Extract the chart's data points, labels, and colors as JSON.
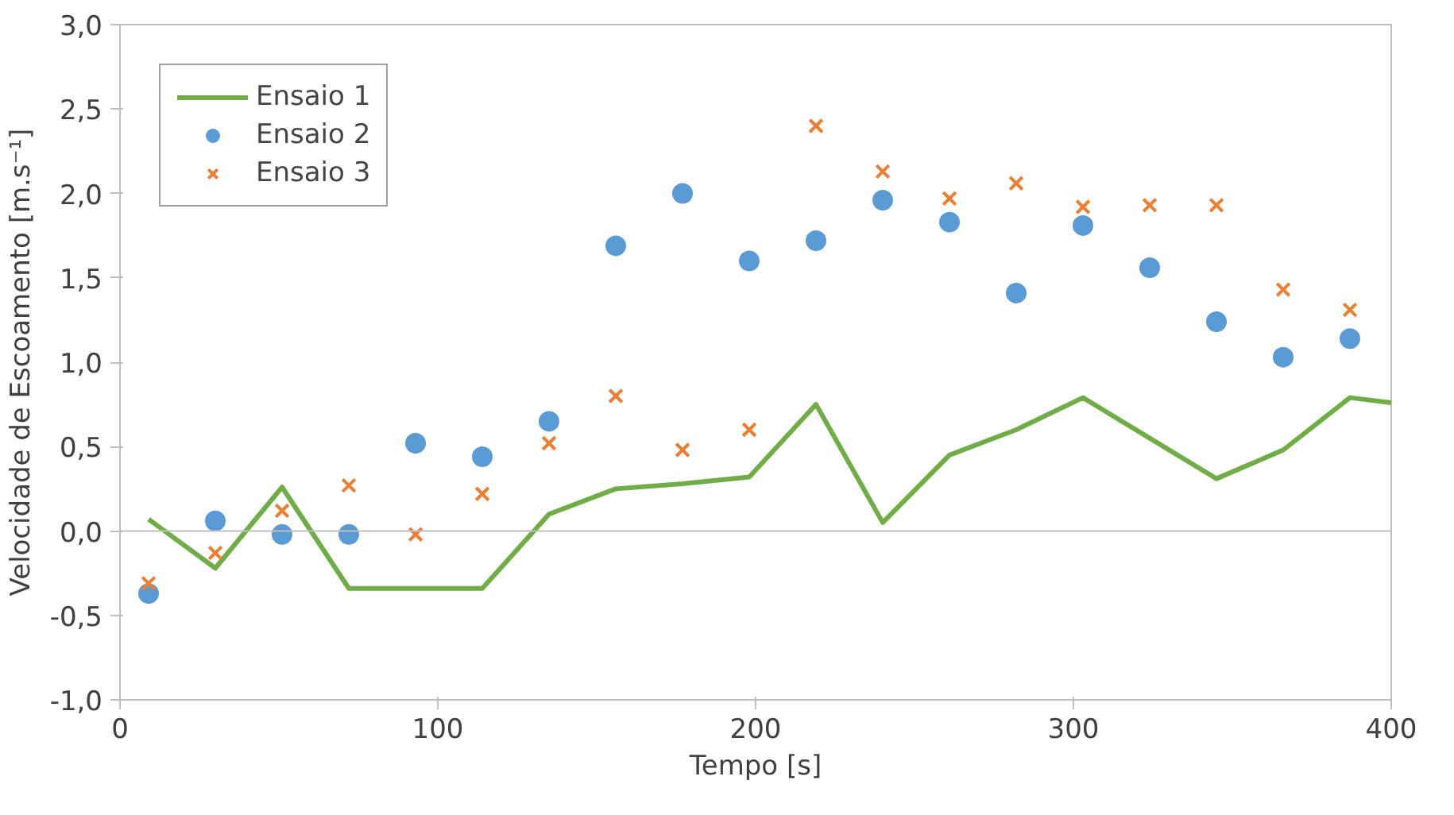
{
  "chart_data": {
    "type": "scatter",
    "xlabel": "Tempo [s]",
    "ylabel": "Velocidade de Escoamento [m.s⁻¹]",
    "xlim": [
      0,
      400
    ],
    "xticks": [
      0,
      100,
      200,
      300,
      400
    ],
    "ylim": [
      -1.0,
      3.0
    ],
    "yticks": [
      {
        "value": -1.0,
        "label": "-1,0"
      },
      {
        "value": -0.5,
        "label": "-0,5"
      },
      {
        "value": 0.0,
        "label": "0,0"
      },
      {
        "value": 0.5,
        "label": "0,5"
      },
      {
        "value": 1.0,
        "label": "1,0"
      },
      {
        "value": 1.5,
        "label": "1,5"
      },
      {
        "value": 2.0,
        "label": "2,0"
      },
      {
        "value": 2.5,
        "label": "2,5"
      },
      {
        "value": 3.0,
        "label": "3,0"
      }
    ],
    "x": [
      9,
      30,
      51,
      72,
      93,
      114,
      135,
      156,
      177,
      198,
      219,
      240,
      261,
      282,
      303,
      324,
      345,
      366,
      387
    ],
    "grid": false,
    "ref_lines": [
      {
        "axis": "y",
        "value": 0,
        "color": "#bfbfbf",
        "line_style": "solid"
      }
    ],
    "legend": "top left",
    "series": [
      {
        "name": "Ensaio 1",
        "type": "line",
        "color": "#70ad47",
        "marker": "none",
        "x": [
          9,
          30,
          51,
          72,
          93,
          114,
          135,
          156,
          177,
          198,
          219,
          240,
          261,
          282,
          303,
          324,
          345,
          366,
          387,
          400
        ],
        "values": [
          0.07,
          -0.22,
          0.26,
          -0.34,
          -0.34,
          -0.34,
          0.1,
          0.25,
          0.28,
          0.32,
          0.75,
          0.05,
          0.45,
          0.6,
          0.79,
          0.55,
          0.31,
          0.48,
          0.79,
          0.76
        ]
      },
      {
        "name": "Ensaio 2",
        "color": "#5b9bd5",
        "marker": "circle",
        "values": [
          -0.37,
          0.06,
          -0.02,
          -0.02,
          0.52,
          0.44,
          0.65,
          1.69,
          2.0,
          1.6,
          1.72,
          1.96,
          1.83,
          1.41,
          1.81,
          1.56,
          1.24,
          1.03,
          1.14
        ]
      },
      {
        "name": "Ensaio 3",
        "color": "#ed7d31",
        "marker": "cross",
        "values": [
          -0.31,
          -0.13,
          0.12,
          0.27,
          -0.02,
          0.22,
          0.52,
          0.8,
          0.48,
          0.6,
          2.4,
          2.13,
          1.97,
          2.06,
          1.92,
          1.93,
          1.93,
          1.43,
          1.31
        ]
      }
    ]
  }
}
